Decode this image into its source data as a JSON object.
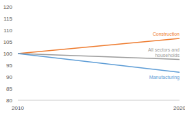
{
  "chart_data": {
    "type": "line",
    "x": [
      2010,
      2020
    ],
    "xlim": [
      2010,
      2020
    ],
    "xticks": [
      2010,
      2020
    ],
    "ylim": [
      80,
      120
    ],
    "yticks": [
      80,
      85,
      90,
      95,
      100,
      105,
      110,
      115,
      120
    ],
    "grid": false,
    "data_labels": false,
    "series": [
      {
        "name": "Construction",
        "color": "#ee7a2d",
        "values": [
          100,
          106.5
        ]
      },
      {
        "name": "All sectors and households",
        "color": "#9a9a9a",
        "values": [
          100,
          97.5
        ]
      },
      {
        "name": "Manufacturing",
        "color": "#5b9bd5",
        "values": [
          100,
          92
        ]
      }
    ]
  }
}
